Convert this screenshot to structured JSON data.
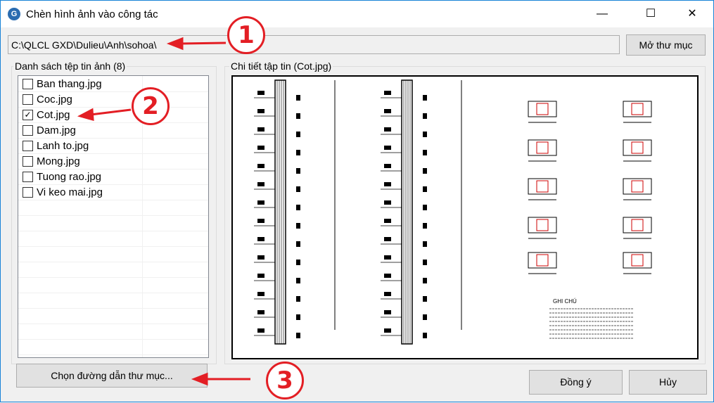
{
  "window": {
    "title": "Chèn hình ảnh vào công tác",
    "minimize": "—",
    "maximize": "☐",
    "close": "✕"
  },
  "path": {
    "value": "C:\\QLCL GXD\\Dulieu\\Anh\\sohoa\\",
    "browse_label": "Mở thư mục"
  },
  "file_list": {
    "title": "Danh sách tệp tin ảnh (8)",
    "items": [
      {
        "label": "Ban thang.jpg",
        "checked": false
      },
      {
        "label": "Coc.jpg",
        "checked": false
      },
      {
        "label": "Cot.jpg",
        "checked": true
      },
      {
        "label": "Dam.jpg",
        "checked": false
      },
      {
        "label": "Lanh to.jpg",
        "checked": false
      },
      {
        "label": "Mong.jpg",
        "checked": false
      },
      {
        "label": "Tuong rao.jpg",
        "checked": false
      },
      {
        "label": "Vi keo mai.jpg",
        "checked": false
      }
    ]
  },
  "detail": {
    "title": "Chi tiết tập tin (Cot.jpg)",
    "notes_heading": "GHI CHÚ"
  },
  "buttons": {
    "choose_folder": "Chọn đường dẫn thư mục...",
    "ok": "Đồng ý",
    "cancel": "Hủy"
  },
  "annotations": [
    "1",
    "2",
    "3"
  ],
  "colors": {
    "annotation": "#e31e24",
    "accent": "#1883d7"
  }
}
